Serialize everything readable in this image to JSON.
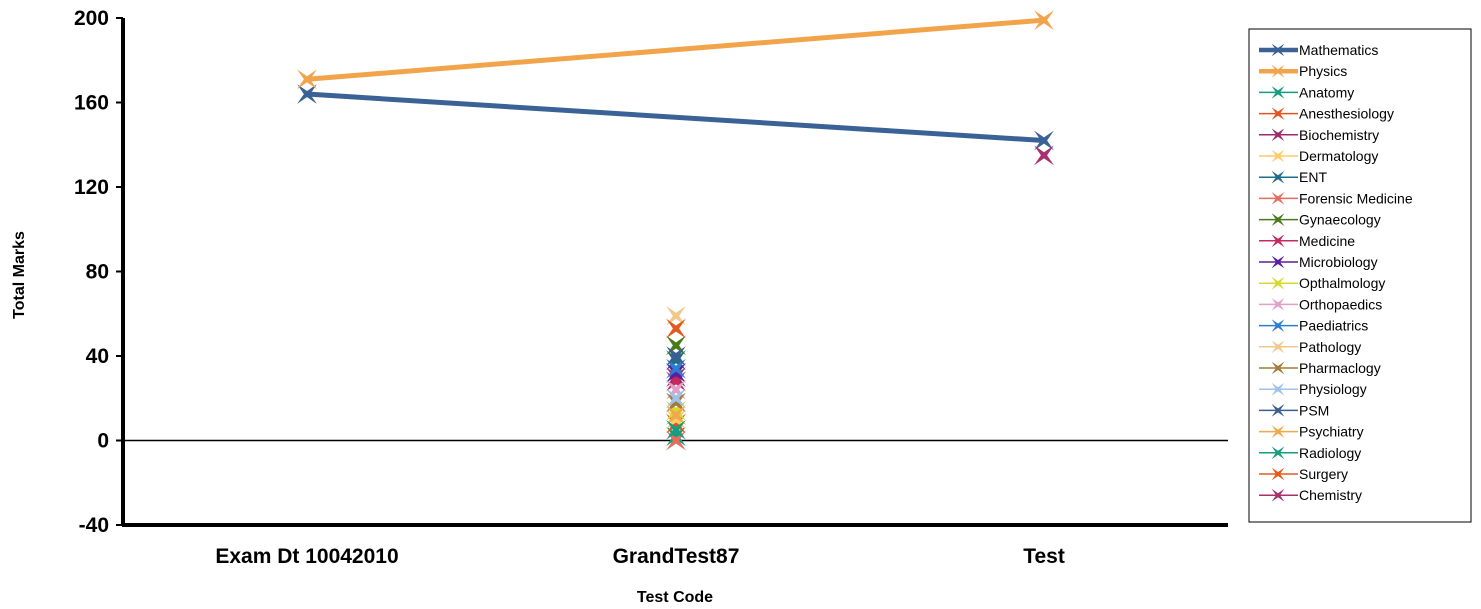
{
  "chart_data": {
    "type": "line",
    "xlabel": "Test Code",
    "ylabel": "Total Marks",
    "categories": [
      "Exam Dt 10042010",
      "GrandTest87",
      "Test"
    ],
    "ylim": [
      -40,
      200
    ],
    "yticks": [
      -40,
      0,
      40,
      80,
      120,
      160,
      200
    ],
    "grid": false,
    "legend_position": "right",
    "series": [
      {
        "name": "Mathematics",
        "color": "#3B6296",
        "values": [
          164,
          null,
          142
        ]
      },
      {
        "name": "Physics",
        "color": "#F2A44B",
        "values": [
          171,
          null,
          199
        ]
      },
      {
        "name": "Anatomy",
        "color": "#139C80",
        "values": [
          null,
          2,
          null
        ]
      },
      {
        "name": "Anesthesiology",
        "color": "#E3531C",
        "values": [
          null,
          8,
          null
        ]
      },
      {
        "name": "Biochemistry",
        "color": "#9E2C6C",
        "values": [
          null,
          30,
          null
        ]
      },
      {
        "name": "Dermatology",
        "color": "#FFCC66",
        "values": [
          null,
          10,
          null
        ]
      },
      {
        "name": "ENT",
        "color": "#1F6D8C",
        "values": [
          null,
          38,
          null
        ]
      },
      {
        "name": "Forensic Medicine",
        "color": "#E36E5C",
        "values": [
          null,
          0,
          null
        ]
      },
      {
        "name": "Gynaecology",
        "color": "#4B7A1A",
        "values": [
          null,
          45,
          null
        ]
      },
      {
        "name": "Medicine",
        "color": "#C8285E",
        "values": [
          null,
          28,
          null
        ]
      },
      {
        "name": "Microbiology",
        "color": "#5B1E9E",
        "values": [
          null,
          32,
          null
        ]
      },
      {
        "name": "Opthalmology",
        "color": "#D8D82E",
        "values": [
          null,
          14,
          null
        ]
      },
      {
        "name": "Orthopaedics",
        "color": "#E0A0C8",
        "values": [
          null,
          24,
          null
        ]
      },
      {
        "name": "Paediatrics",
        "color": "#2C7FD0",
        "values": [
          null,
          34,
          null
        ]
      },
      {
        "name": "Pathology",
        "color": "#F0C88A",
        "values": [
          null,
          59,
          null
        ]
      },
      {
        "name": "Pharmaclogy",
        "color": "#A37B3A",
        "values": [
          null,
          18,
          null
        ]
      },
      {
        "name": "Physiology",
        "color": "#9EC3E8",
        "values": [
          null,
          20,
          null
        ]
      },
      {
        "name": "PSM",
        "color": "#3A5F8F",
        "values": [
          null,
          40,
          null
        ]
      },
      {
        "name": "Psychiatry",
        "color": "#F0A84E",
        "values": [
          null,
          12,
          null
        ]
      },
      {
        "name": "Radiology",
        "color": "#179E82",
        "values": [
          null,
          5,
          null
        ]
      },
      {
        "name": "Surgery",
        "color": "#E35A1E",
        "values": [
          null,
          53,
          null
        ]
      },
      {
        "name": "Chemistry",
        "color": "#A8306E",
        "values": [
          null,
          null,
          135
        ]
      }
    ]
  }
}
